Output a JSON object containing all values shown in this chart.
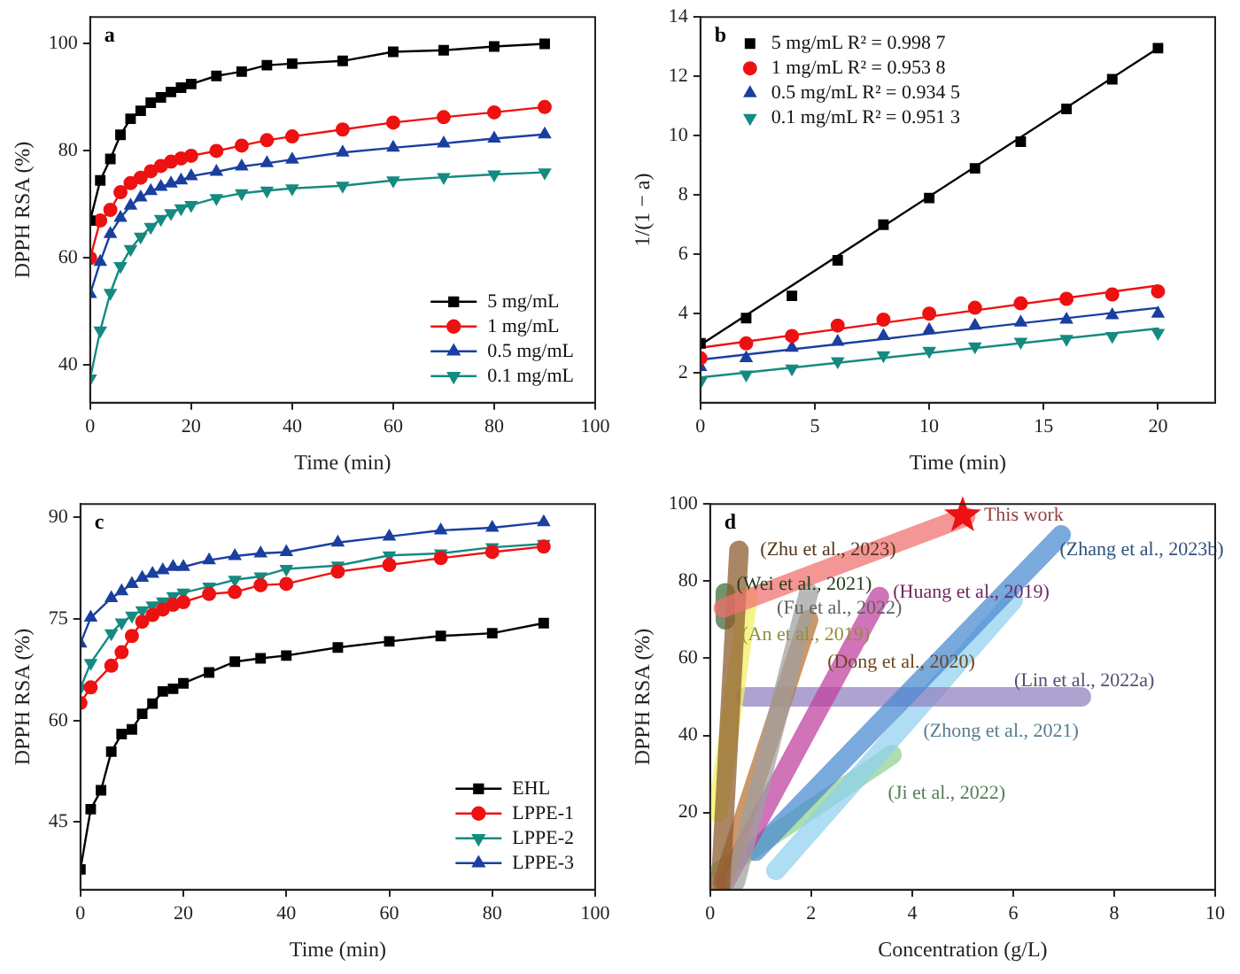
{
  "chart_data": [
    {
      "type": "line",
      "xlabel": "Time (min)",
      "ylabel": "DPPH RSA (%)",
      "annotations": [
        "a"
      ],
      "legend": "bottom right",
      "grid": false,
      "xlim": [
        0,
        100
      ],
      "xticks": [
        0,
        20,
        40,
        60,
        80,
        100
      ],
      "ylim": [
        33,
        105
      ],
      "yticks": [
        40,
        60,
        80,
        100
      ],
      "x": [
        0,
        2,
        4,
        6,
        8,
        10,
        12,
        14,
        16,
        18,
        20,
        25,
        30,
        35,
        40,
        50,
        60,
        70,
        80,
        90
      ],
      "series": [
        {
          "name": "5 mg/mL",
          "color": "#000000",
          "marker": "square",
          "values": [
            67,
            74.5,
            78.5,
            83,
            86,
            87.5,
            89,
            90,
            91,
            91.8,
            92.5,
            94,
            94.8,
            96,
            96.3,
            96.8,
            98.5,
            98.8,
            99.5,
            100
          ]
        },
        {
          "name": "1 mg/mL",
          "color": "#ee1111",
          "marker": "circle",
          "values": [
            60,
            67,
            69,
            72.3,
            74,
            75,
            76.2,
            77.2,
            78,
            78.6,
            79.1,
            80,
            81,
            82,
            82.7,
            84,
            85.3,
            86.3,
            87.2,
            88.2
          ]
        },
        {
          "name": "0.5 mg/mL",
          "color": "#1a3fa0",
          "marker": "triangle",
          "values": [
            53.3,
            59.3,
            64.5,
            67.5,
            69.8,
            71.3,
            72.5,
            73.3,
            73.9,
            74.5,
            75.3,
            76.1,
            77.1,
            77.7,
            78.4,
            79.7,
            80.6,
            81.4,
            82.3,
            83.1
          ]
        },
        {
          "name": "0.1 mg/mL",
          "color": "#158a80",
          "marker": "triangle-down",
          "values": [
            37.5,
            46.5,
            53.5,
            58.5,
            61.7,
            64,
            65.8,
            67.3,
            68.4,
            69.3,
            69.9,
            71.2,
            72.1,
            72.6,
            73,
            73.5,
            74.5,
            75.1,
            75.6,
            76
          ]
        }
      ]
    },
    {
      "type": "scatter",
      "xlabel": "Time (min)",
      "ylabel": "1/(1 − a)",
      "annotations": [
        "b"
      ],
      "legend": "top left",
      "grid": false,
      "xlim": [
        0,
        22.5
      ],
      "xticks": [
        0,
        5,
        10,
        15,
        20
      ],
      "ylim": [
        1,
        14
      ],
      "yticks": [
        2,
        4,
        6,
        8,
        10,
        12,
        14
      ],
      "x": [
        0,
        2,
        4,
        6,
        8,
        10,
        12,
        14,
        16,
        18,
        20
      ],
      "series": [
        {
          "name": "5 mg/mL R² = 0.998 7",
          "color": "#000000",
          "marker": "square",
          "values": [
            3.0,
            3.85,
            4.6,
            5.8,
            7.0,
            7.9,
            8.9,
            9.8,
            10.9,
            11.9,
            12.95
          ]
        },
        {
          "name": "1 mg/mL R² = 0.953 8",
          "color": "#ee1111",
          "marker": "circle",
          "values": [
            2.5,
            3.0,
            3.25,
            3.6,
            3.8,
            4.0,
            4.2,
            4.35,
            4.5,
            4.65,
            4.75
          ]
        },
        {
          "name": "0.5 mg/mL R² = 0.934 5",
          "color": "#1a3fa0",
          "marker": "triangle",
          "values": [
            2.2,
            2.5,
            2.85,
            3.05,
            3.25,
            3.45,
            3.6,
            3.7,
            3.8,
            3.95,
            4.0
          ]
        },
        {
          "name": "0.1 mg/mL R² = 0.951 3",
          "color": "#158a80",
          "marker": "triangle-down",
          "values": [
            1.7,
            1.95,
            2.15,
            2.4,
            2.6,
            2.75,
            2.9,
            3.05,
            3.15,
            3.25,
            3.35
          ]
        },
        {
          "type": "line",
          "color": "#000000",
          "marker": "none",
          "x": [
            0,
            20
          ],
          "values": [
            2.95,
            12.95
          ]
        },
        {
          "type": "line",
          "color": "#ee1111",
          "marker": "none",
          "x": [
            0,
            20
          ],
          "values": [
            2.85,
            4.95
          ]
        },
        {
          "type": "line",
          "color": "#1a3fa0",
          "marker": "none",
          "x": [
            0,
            20
          ],
          "values": [
            2.45,
            4.2
          ]
        },
        {
          "type": "line",
          "color": "#158a80",
          "marker": "none",
          "x": [
            0,
            20
          ],
          "values": [
            1.85,
            3.5
          ]
        }
      ]
    },
    {
      "type": "line",
      "xlabel": "Time (min)",
      "ylabel": "DPPH RSA (%)",
      "annotations": [
        "c"
      ],
      "legend": "bottom right",
      "grid": false,
      "xlim": [
        0,
        100
      ],
      "xticks": [
        0,
        20,
        40,
        60,
        80,
        100
      ],
      "ylim": [
        35,
        92
      ],
      "yticks": [
        45,
        60,
        75,
        90
      ],
      "x": [
        0,
        2,
        4,
        6,
        8,
        10,
        12,
        14,
        16,
        18,
        20,
        25,
        30,
        35,
        40,
        50,
        60,
        70,
        80,
        90
      ],
      "series": [
        {
          "name": "EHL",
          "color": "#000000",
          "marker": "square",
          "values": [
            38,
            46.9,
            49.7,
            55.4,
            58,
            58.7,
            61,
            62.5,
            64.3,
            64.7,
            65.5,
            67.1,
            68.7,
            69.2,
            69.6,
            70.8,
            71.7,
            72.5,
            72.9,
            74.4
          ]
        },
        {
          "name": "LPPE-1",
          "color": "#ee1111",
          "marker": "circle",
          "values": [
            62.6,
            64.9,
            null,
            68.1,
            70.1,
            72.5,
            74.6,
            75.6,
            76.4,
            77.1,
            77.5,
            78.7,
            79,
            80,
            80.2,
            82,
            83,
            84,
            84.9,
            85.7
          ]
        },
        {
          "name": "LPPE-2",
          "color": "#158a80",
          "marker": "triangle-down",
          "values": [
            64.8,
            68.5,
            null,
            72.9,
            74.5,
            75.5,
            76.3,
            77,
            77.6,
            78.4,
            78.9,
            79.8,
            80.8,
            81.3,
            82.4,
            82.9,
            84.4,
            84.7,
            85.6,
            86.1
          ]
        },
        {
          "name": "LPPE-3",
          "color": "#1a3fa0",
          "marker": "triangle",
          "values": [
            71.4,
            75.2,
            null,
            78.1,
            79.1,
            80.2,
            81.1,
            81.7,
            82.2,
            82.7,
            82.7,
            83.7,
            84.3,
            84.7,
            84.9,
            86.3,
            87.2,
            88.1,
            88.5,
            89.3
          ]
        }
      ]
    },
    {
      "type": "scatter",
      "xlabel": "Concentration (g/L)",
      "ylabel": "DPPH RSA (%)",
      "legend": false,
      "grid": false,
      "xlim": [
        0,
        10
      ],
      "xticks": [
        0,
        2,
        4,
        6,
        8,
        10
      ],
      "ylim": [
        0,
        100
      ],
      "yticks": [
        20,
        40,
        60,
        80,
        100
      ],
      "annotations": [
        "d",
        {
          "text": "This work",
          "x": 5,
          "y": 97
        },
        {
          "text": "(Zhu et al., 2023)",
          "x": 0.57,
          "y": 88
        },
        {
          "text": "(Wei et al., 2021)",
          "x": 0.1,
          "y": 79
        },
        {
          "text": "(Fu et al., 2022)",
          "x": 0.9,
          "y": 73
        },
        {
          "text": "(An et al., 2019)",
          "x": 0.2,
          "y": 66
        },
        {
          "text": "(Dong et al., 2020)",
          "x": 1.9,
          "y": 59
        },
        {
          "text": "(Huang et al., 2019)",
          "x": 3.2,
          "y": 77
        },
        {
          "text": "(Zhang et al., 2023b)",
          "x": 6.5,
          "y": 88
        },
        {
          "text": "(Lin et al., 2022a)",
          "x": 5.6,
          "y": 54
        },
        {
          "text": "(Zhong et al., 2021)",
          "x": 3.8,
          "y": 41
        },
        {
          "text": "(Ji et al., 2022)",
          "x": 3.1,
          "y": 25
        }
      ],
      "series": [
        {
          "type": "line",
          "color": "#f07070",
          "x": [
            0.26,
            5.06
          ],
          "values": [
            73,
            96.7
          ]
        },
        {
          "type": "line",
          "color": "#8b5a2b",
          "x": [
            0.2,
            0.57
          ],
          "values": [
            0,
            88
          ]
        },
        {
          "type": "line",
          "color": "#3d6b35",
          "x": [
            0.3,
            0.3
          ],
          "values": [
            70,
            77
          ]
        },
        {
          "type": "line",
          "color": "#a0a0a0",
          "x": [
            0.5,
            1.95
          ],
          "values": [
            2,
            77
          ]
        },
        {
          "type": "line",
          "color": "#f0f060",
          "x": [
            0.15,
            0.75
          ],
          "values": [
            20,
            76
          ]
        },
        {
          "type": "line",
          "color": "#b87333",
          "x": [
            0.25,
            1.95
          ],
          "values": [
            2,
            70
          ]
        },
        {
          "type": "line",
          "color": "#c040a0",
          "x": [
            0.3,
            3.35
          ],
          "values": [
            2,
            76
          ]
        },
        {
          "type": "line",
          "color": "#4a8ad0",
          "x": [
            0.9,
            6.95
          ],
          "values": [
            10,
            92
          ]
        },
        {
          "type": "line",
          "color": "#9080c0",
          "x": [
            0.7,
            7.35
          ],
          "values": [
            50,
            50
          ]
        },
        {
          "type": "line",
          "color": "#90d0f0",
          "x": [
            1.3,
            6
          ],
          "values": [
            5,
            75
          ]
        },
        {
          "type": "line",
          "color": "#90d090",
          "x": [
            0.2,
            3.6
          ],
          "values": [
            5,
            35
          ]
        },
        {
          "type": "scatter",
          "color": "#ee1111",
          "marker": "star",
          "x": [
            5
          ],
          "values": [
            97
          ]
        }
      ]
    }
  ]
}
